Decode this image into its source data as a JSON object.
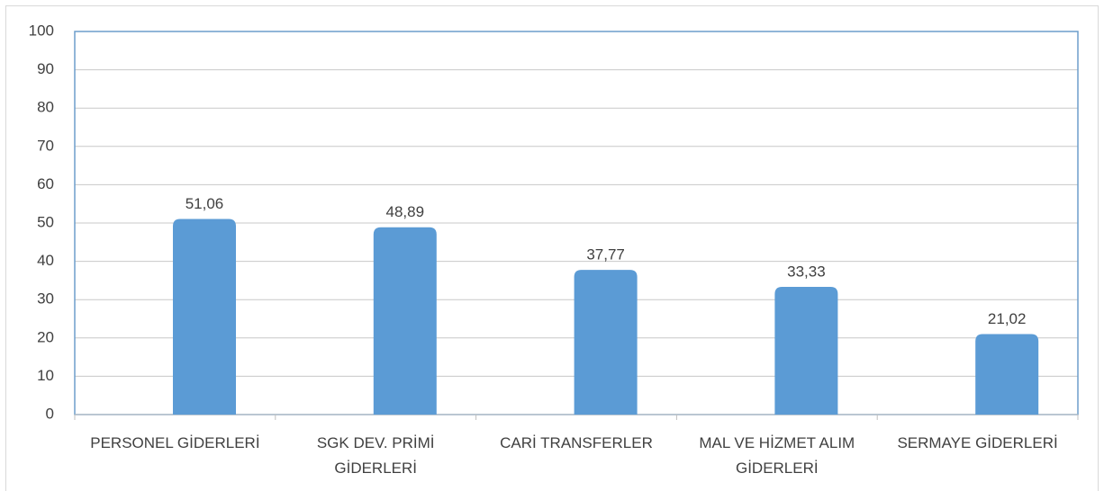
{
  "chart_data": {
    "type": "bar",
    "categories": [
      "PERSONEL GİDERLERİ",
      "SGK DEV. PRİMİ GİDERLERİ",
      "CARİ TRANSFERLER",
      "MAL VE HİZMET ALIM GİDERLERİ",
      "SERMAYE GİDERLERİ"
    ],
    "values": [
      51.06,
      48.89,
      37.77,
      33.33,
      21.02
    ],
    "value_labels": [
      "51,06",
      "48,89",
      "37,77",
      "33,33",
      "21,02"
    ],
    "color": "#5b9bd5",
    "ylim": [
      0,
      100
    ],
    "yticks": [
      0,
      10,
      20,
      30,
      40,
      50,
      60,
      70,
      80,
      90,
      100
    ],
    "grid": true
  }
}
